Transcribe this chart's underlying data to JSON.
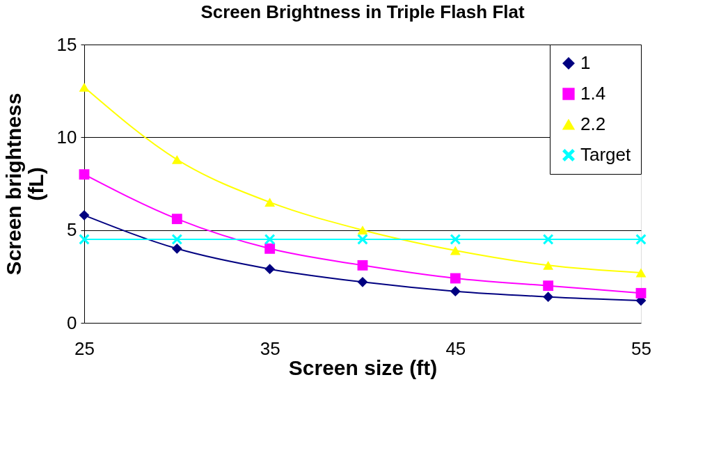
{
  "chart_data": {
    "type": "line",
    "title": "Screen Brightness in Triple Flash Flat",
    "xlabel": "Screen size (ft)",
    "ylabel": "Screen brightness (fL)",
    "x": [
      25,
      30,
      35,
      40,
      45,
      50,
      55
    ],
    "series": [
      {
        "name": "1",
        "color": "#000080",
        "marker": "diamond",
        "values": [
          5.8,
          4.0,
          2.9,
          2.2,
          1.7,
          1.4,
          1.2
        ]
      },
      {
        "name": "1.4",
        "color": "#ff00ff",
        "marker": "square",
        "values": [
          8.0,
          5.6,
          4.0,
          3.1,
          2.4,
          2.0,
          1.6
        ]
      },
      {
        "name": "2.2",
        "color": "#ffff00",
        "marker": "triangle",
        "values": [
          12.7,
          8.8,
          6.5,
          5.0,
          3.9,
          3.1,
          2.7
        ]
      },
      {
        "name": "Target",
        "color": "#00ffff",
        "marker": "cross",
        "values": [
          4.5,
          4.5,
          4.5,
          4.5,
          4.5,
          4.5,
          4.5
        ]
      }
    ],
    "xlim": [
      25,
      55
    ],
    "xticks": [
      25,
      35,
      45,
      55
    ],
    "ylim": [
      0,
      15
    ],
    "yticks": [
      0,
      5,
      10,
      15
    ],
    "grid": "y",
    "legend": "top right",
    "line_style": "solid"
  }
}
